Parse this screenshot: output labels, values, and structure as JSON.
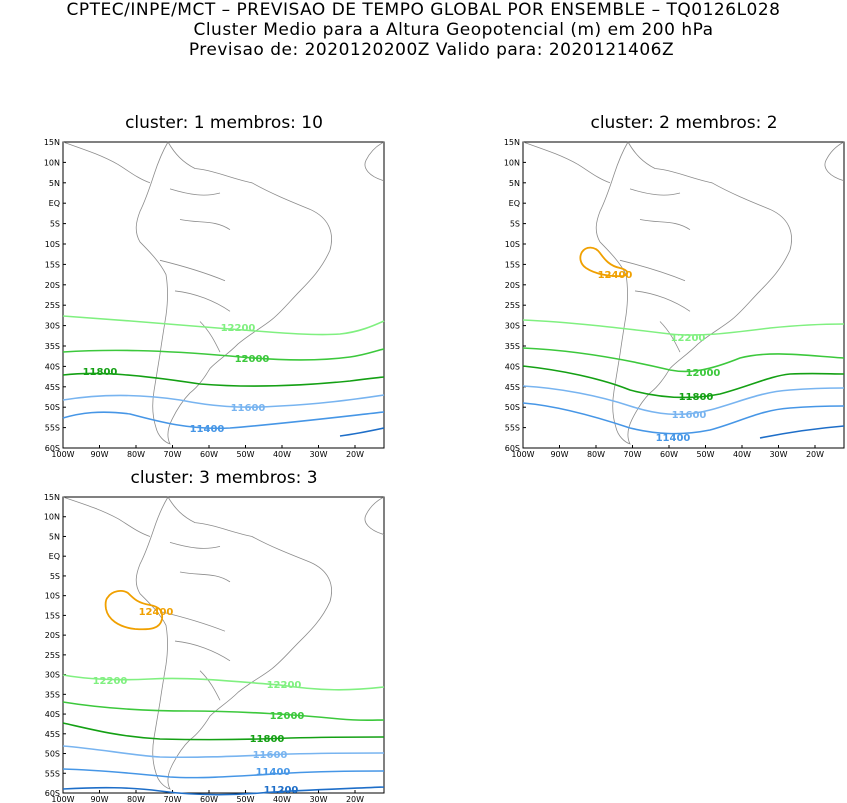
{
  "header": {
    "line1": "CPTEC/INPE/MCT – PREVISAO DE TEMPO GLOBAL POR ENSEMBLE – TQ0126L028",
    "line2": "Cluster Medio para a Altura Geopotencial (m) em 200 hPa",
    "line3": "Previsao de: 2020120200Z    Valido para: 2020121406Z"
  },
  "axes": {
    "lat_labels": [
      "15N",
      "10N",
      "5N",
      "EQ",
      "5S",
      "10S",
      "15S",
      "20S",
      "25S",
      "30S",
      "35S",
      "40S",
      "45S",
      "50S",
      "55S",
      "60S"
    ],
    "lon_labels": [
      "100W",
      "90W",
      "80W",
      "70W",
      "60W",
      "50W",
      "40W",
      "30W",
      "20W"
    ]
  },
  "colors": {
    "c12400": "#f0a000",
    "c12200": "#80f080",
    "c12000": "#3cc83c",
    "c11800": "#14a014",
    "c11600": "#78b4f0",
    "c11400": "#4696e6",
    "c11200": "#1e6ec8",
    "coast": "#8c8c8c"
  },
  "panels": [
    {
      "title": "cluster: 1   membros: 10",
      "labels": {
        "c12200": "12200",
        "c12000": "12000",
        "c11800": "11800",
        "c11600": "11600",
        "c11400": "11400"
      }
    },
    {
      "title": "cluster: 2   membros: 2",
      "labels": {
        "c12400": "12400",
        "c12200": "12200",
        "c12000": "12000",
        "c11800": "11800",
        "c11600": "11600",
        "c11400": "11400"
      }
    },
    {
      "title": "cluster: 3   membros: 3",
      "labels": {
        "c12400": "12400",
        "c12200a": "12200",
        "c12200b": "12200",
        "c12000": "12000",
        "c11800": "11800",
        "c11600": "11600",
        "c11400": "11400",
        "c11200": "11200"
      }
    }
  ]
}
